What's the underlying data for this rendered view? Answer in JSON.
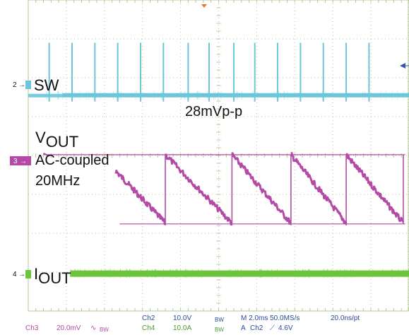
{
  "colors": {
    "sw": "#6cc6d8",
    "vout": "#b44aa6",
    "iout": "#6cc43c",
    "grid": "#b8c79a",
    "marker": "#e07a2a",
    "status_text": "#2a4a9a"
  },
  "channels": [
    {
      "number": "2",
      "label": "SW",
      "color": "#6cc6d8"
    },
    {
      "number": "3",
      "label": "VOUT",
      "color": "#b44aa6"
    },
    {
      "number": "4",
      "label": "IOUT",
      "color": "#6cc43c"
    }
  ],
  "annotations": {
    "sw_label": "SW",
    "vout_main": "V",
    "vout_sub": "OUT",
    "vout_line2": "AC-coupled",
    "vout_line3": "20MHz",
    "iout_main": "I",
    "iout_sub": "OUT",
    "ripple_label": "28mVp-p"
  },
  "status_bar": {
    "ch2_label": "Ch2",
    "ch2_scale": "10.0V",
    "ch2_bw": "BW",
    "ch3_label": "Ch3",
    "ch3_scale": "20.0mV",
    "ch3_symbol": "∿",
    "ch3_bw": "BW",
    "ch4_label": "Ch4",
    "ch4_scale": "10.0A",
    "ch4_bw": "BW",
    "timebase": "M 2.0ms 50.0MS/s",
    "sample_interval": "20.0ns/pt",
    "trigger_mode": "A",
    "trigger_source": "Ch2",
    "trigger_edge": "⟋",
    "trigger_level": "4.6V"
  },
  "chart_data": {
    "type": "line",
    "title": "",
    "xlabel": "",
    "ylabel": "",
    "time_per_div_ms": 2.0,
    "x_divisions": 10,
    "y_divisions": 8,
    "grid": true,
    "series": [
      {
        "name": "SW",
        "kind": "pulse_train",
        "pulse_times_div": [
          0.55,
          1.15,
          1.75,
          2.35,
          2.95,
          3.55,
          4.2,
          4.75,
          5.4,
          5.95,
          6.55,
          7.15,
          7.75,
          8.35,
          8.95
        ]
      },
      {
        "name": "VOUT",
        "kind": "sawtooth",
        "ripple_mVpp": 28,
        "reset_times_div": [
          3.6,
          5.35,
          6.9,
          8.35,
          9.85
        ],
        "start_time_div": 2.3
      },
      {
        "name": "IOUT",
        "kind": "dc"
      }
    ]
  }
}
